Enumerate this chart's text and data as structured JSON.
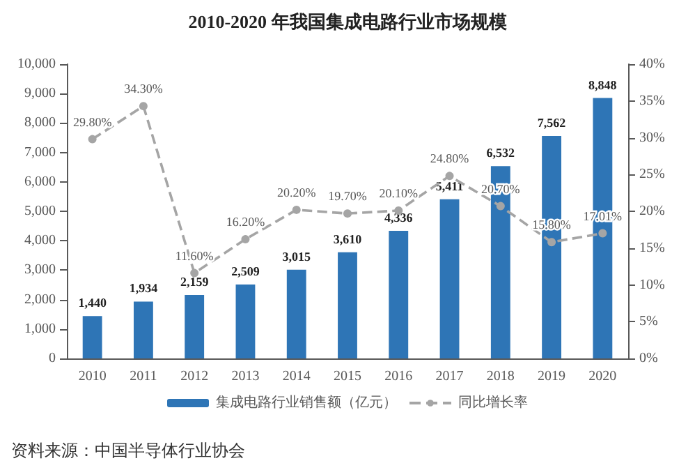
{
  "chart_data": {
    "type": "bar",
    "title": "2010-2020 年我国集成电路行业市场规模",
    "categories": [
      "2010",
      "2011",
      "2012",
      "2013",
      "2014",
      "2015",
      "2016",
      "2017",
      "2018",
      "2019",
      "2020"
    ],
    "series": [
      {
        "name": "集成电路行业销售额（亿元）",
        "color": "#2e75b6",
        "values": [
          1440,
          1934,
          2159,
          2509,
          3015,
          3610,
          4336,
          5411,
          6532,
          7562,
          8848
        ],
        "value_labels": [
          "1,440",
          "1,934",
          "2,159",
          "2,509",
          "3,015",
          "3,610",
          "4,336",
          "5,411",
          "6,532",
          "7,562",
          "8,848"
        ]
      },
      {
        "name": "同比增长率",
        "type": "line",
        "axis": "y2",
        "color": "#a5a5a5",
        "marker": "circle",
        "line_style": "dashed",
        "values": [
          29.8,
          34.3,
          11.6,
          16.2,
          20.2,
          19.7,
          20.1,
          24.8,
          20.7,
          15.8,
          17.01
        ],
        "value_labels": [
          "29.80%",
          "34.30%",
          "11.60%",
          "16.20%",
          "20.20%",
          "19.70%",
          "20.10%",
          "24.80%",
          "20.70%",
          "15.80%",
          "17.01%"
        ]
      }
    ],
    "ylim": [
      0,
      10000
    ],
    "yticks": [
      0,
      {
        "value": 1000,
        "label": "1,000"
      },
      {
        "value": 2000,
        "label": "2,000"
      },
      {
        "value": 3000,
        "label": "3,000"
      },
      {
        "value": 4000,
        "label": "4,000"
      },
      {
        "value": 5000,
        "label": "5,000"
      },
      {
        "value": 6000,
        "label": "6,000"
      },
      {
        "value": 7000,
        "label": "7,000"
      },
      {
        "value": 8000,
        "label": "8,000"
      },
      {
        "value": 9000,
        "label": "9,000"
      },
      {
        "value": 10000,
        "label": "10,000"
      }
    ],
    "y2lim": [
      0,
      40
    ],
    "y2ticks": [
      {
        "value": 0,
        "label": "0%"
      },
      {
        "value": 5,
        "label": "5%"
      },
      {
        "value": 10,
        "label": "10%"
      },
      {
        "value": 15,
        "label": "15%"
      },
      {
        "value": 20,
        "label": "20%"
      },
      {
        "value": 25,
        "label": "25%"
      },
      {
        "value": 30,
        "label": "30%"
      },
      {
        "value": 35,
        "label": "35%"
      },
      {
        "value": 40,
        "label": "40%"
      }
    ],
    "legend": "bottom",
    "grid": false,
    "annotations": [
      "资料来源：中国半导体行业协会"
    ]
  }
}
